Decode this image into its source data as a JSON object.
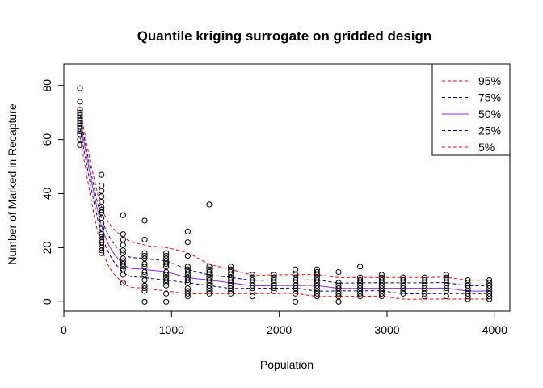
{
  "chart_data": {
    "type": "scatter",
    "title": "Quantile kriging surrogate on gridded design",
    "xlabel": "Population",
    "ylabel": "Number of Marked in Recapture",
    "xlim": [
      0,
      4140
    ],
    "ylim": [
      -3.5,
      88
    ],
    "xticks": [
      0,
      1000,
      2000,
      3000,
      4000
    ],
    "yticks": [
      0,
      20,
      40,
      60,
      80
    ],
    "legend_position": "top-right",
    "points": [
      {
        "x": 150,
        "y": 79
      },
      {
        "x": 150,
        "y": 74
      },
      {
        "x": 150,
        "y": 71
      },
      {
        "x": 150,
        "y": 70
      },
      {
        "x": 150,
        "y": 69
      },
      {
        "x": 150,
        "y": 68
      },
      {
        "x": 150,
        "y": 67
      },
      {
        "x": 150,
        "y": 66
      },
      {
        "x": 150,
        "y": 65
      },
      {
        "x": 150,
        "y": 64
      },
      {
        "x": 150,
        "y": 63
      },
      {
        "x": 150,
        "y": 62
      },
      {
        "x": 150,
        "y": 60
      },
      {
        "x": 150,
        "y": 58
      },
      {
        "x": 350,
        "y": 47
      },
      {
        "x": 350,
        "y": 43
      },
      {
        "x": 350,
        "y": 41
      },
      {
        "x": 350,
        "y": 39
      },
      {
        "x": 350,
        "y": 37
      },
      {
        "x": 350,
        "y": 35
      },
      {
        "x": 350,
        "y": 34
      },
      {
        "x": 350,
        "y": 33
      },
      {
        "x": 350,
        "y": 31
      },
      {
        "x": 350,
        "y": 29
      },
      {
        "x": 350,
        "y": 27
      },
      {
        "x": 350,
        "y": 25
      },
      {
        "x": 350,
        "y": 24
      },
      {
        "x": 350,
        "y": 23
      },
      {
        "x": 350,
        "y": 22
      },
      {
        "x": 350,
        "y": 21
      },
      {
        "x": 350,
        "y": 20
      },
      {
        "x": 350,
        "y": 19
      },
      {
        "x": 350,
        "y": 18
      },
      {
        "x": 550,
        "y": 32
      },
      {
        "x": 550,
        "y": 25
      },
      {
        "x": 550,
        "y": 23
      },
      {
        "x": 550,
        "y": 21
      },
      {
        "x": 550,
        "y": 19
      },
      {
        "x": 550,
        "y": 18
      },
      {
        "x": 550,
        "y": 16
      },
      {
        "x": 550,
        "y": 15
      },
      {
        "x": 550,
        "y": 14
      },
      {
        "x": 550,
        "y": 13
      },
      {
        "x": 550,
        "y": 12
      },
      {
        "x": 550,
        "y": 10
      },
      {
        "x": 550,
        "y": 7
      },
      {
        "x": 750,
        "y": 30
      },
      {
        "x": 750,
        "y": 23
      },
      {
        "x": 750,
        "y": 18
      },
      {
        "x": 750,
        "y": 17
      },
      {
        "x": 750,
        "y": 16
      },
      {
        "x": 750,
        "y": 14
      },
      {
        "x": 750,
        "y": 13
      },
      {
        "x": 750,
        "y": 11
      },
      {
        "x": 750,
        "y": 10
      },
      {
        "x": 750,
        "y": 8
      },
      {
        "x": 750,
        "y": 6
      },
      {
        "x": 750,
        "y": 5
      },
      {
        "x": 750,
        "y": 4
      },
      {
        "x": 750,
        "y": 0
      },
      {
        "x": 950,
        "y": 18
      },
      {
        "x": 950,
        "y": 17
      },
      {
        "x": 950,
        "y": 16
      },
      {
        "x": 950,
        "y": 15
      },
      {
        "x": 950,
        "y": 14
      },
      {
        "x": 950,
        "y": 13
      },
      {
        "x": 950,
        "y": 11
      },
      {
        "x": 950,
        "y": 10
      },
      {
        "x": 950,
        "y": 9
      },
      {
        "x": 950,
        "y": 8
      },
      {
        "x": 950,
        "y": 7
      },
      {
        "x": 950,
        "y": 6
      },
      {
        "x": 950,
        "y": 3
      },
      {
        "x": 950,
        "y": 0
      },
      {
        "x": 1150,
        "y": 26
      },
      {
        "x": 1150,
        "y": 22
      },
      {
        "x": 1150,
        "y": 17
      },
      {
        "x": 1150,
        "y": 13
      },
      {
        "x": 1150,
        "y": 12
      },
      {
        "x": 1150,
        "y": 11
      },
      {
        "x": 1150,
        "y": 10
      },
      {
        "x": 1150,
        "y": 9
      },
      {
        "x": 1150,
        "y": 8
      },
      {
        "x": 1150,
        "y": 7
      },
      {
        "x": 1150,
        "y": 5
      },
      {
        "x": 1150,
        "y": 4
      },
      {
        "x": 1150,
        "y": 3
      },
      {
        "x": 1150,
        "y": 2
      },
      {
        "x": 1350,
        "y": 36
      },
      {
        "x": 1350,
        "y": 13
      },
      {
        "x": 1350,
        "y": 12
      },
      {
        "x": 1350,
        "y": 11
      },
      {
        "x": 1350,
        "y": 10
      },
      {
        "x": 1350,
        "y": 9
      },
      {
        "x": 1350,
        "y": 8
      },
      {
        "x": 1350,
        "y": 7
      },
      {
        "x": 1350,
        "y": 6
      },
      {
        "x": 1350,
        "y": 5
      },
      {
        "x": 1350,
        "y": 4
      },
      {
        "x": 1350,
        "y": 3
      },
      {
        "x": 1550,
        "y": 13
      },
      {
        "x": 1550,
        "y": 12
      },
      {
        "x": 1550,
        "y": 11
      },
      {
        "x": 1550,
        "y": 10
      },
      {
        "x": 1550,
        "y": 9
      },
      {
        "x": 1550,
        "y": 8
      },
      {
        "x": 1550,
        "y": 7
      },
      {
        "x": 1550,
        "y": 6
      },
      {
        "x": 1550,
        "y": 5
      },
      {
        "x": 1550,
        "y": 4
      },
      {
        "x": 1550,
        "y": 3
      },
      {
        "x": 1750,
        "y": 10
      },
      {
        "x": 1750,
        "y": 9
      },
      {
        "x": 1750,
        "y": 8
      },
      {
        "x": 1750,
        "y": 7
      },
      {
        "x": 1750,
        "y": 6
      },
      {
        "x": 1750,
        "y": 5
      },
      {
        "x": 1750,
        "y": 4
      },
      {
        "x": 1750,
        "y": 2
      },
      {
        "x": 1950,
        "y": 10
      },
      {
        "x": 1950,
        "y": 9
      },
      {
        "x": 1950,
        "y": 8
      },
      {
        "x": 1950,
        "y": 7
      },
      {
        "x": 1950,
        "y": 6
      },
      {
        "x": 1950,
        "y": 5
      },
      {
        "x": 1950,
        "y": 4
      },
      {
        "x": 2150,
        "y": 12
      },
      {
        "x": 2150,
        "y": 10
      },
      {
        "x": 2150,
        "y": 9
      },
      {
        "x": 2150,
        "y": 8
      },
      {
        "x": 2150,
        "y": 7
      },
      {
        "x": 2150,
        "y": 6
      },
      {
        "x": 2150,
        "y": 5
      },
      {
        "x": 2150,
        "y": 4
      },
      {
        "x": 2150,
        "y": 3
      },
      {
        "x": 2150,
        "y": 0
      },
      {
        "x": 2350,
        "y": 12
      },
      {
        "x": 2350,
        "y": 11
      },
      {
        "x": 2350,
        "y": 10
      },
      {
        "x": 2350,
        "y": 9
      },
      {
        "x": 2350,
        "y": 8
      },
      {
        "x": 2350,
        "y": 7
      },
      {
        "x": 2350,
        "y": 6
      },
      {
        "x": 2350,
        "y": 5
      },
      {
        "x": 2350,
        "y": 4
      },
      {
        "x": 2350,
        "y": 3
      },
      {
        "x": 2350,
        "y": 2
      },
      {
        "x": 2550,
        "y": 11
      },
      {
        "x": 2550,
        "y": 7
      },
      {
        "x": 2550,
        "y": 6
      },
      {
        "x": 2550,
        "y": 5
      },
      {
        "x": 2550,
        "y": 4
      },
      {
        "x": 2550,
        "y": 3
      },
      {
        "x": 2550,
        "y": 2
      },
      {
        "x": 2550,
        "y": 0
      },
      {
        "x": 2750,
        "y": 13
      },
      {
        "x": 2750,
        "y": 9
      },
      {
        "x": 2750,
        "y": 8
      },
      {
        "x": 2750,
        "y": 7
      },
      {
        "x": 2750,
        "y": 6
      },
      {
        "x": 2750,
        "y": 5
      },
      {
        "x": 2750,
        "y": 4
      },
      {
        "x": 2750,
        "y": 3
      },
      {
        "x": 2750,
        "y": 2
      },
      {
        "x": 2950,
        "y": 10
      },
      {
        "x": 2950,
        "y": 9
      },
      {
        "x": 2950,
        "y": 8
      },
      {
        "x": 2950,
        "y": 7
      },
      {
        "x": 2950,
        "y": 6
      },
      {
        "x": 2950,
        "y": 5
      },
      {
        "x": 2950,
        "y": 4
      },
      {
        "x": 2950,
        "y": 3
      },
      {
        "x": 2950,
        "y": 2
      },
      {
        "x": 3150,
        "y": 9
      },
      {
        "x": 3150,
        "y": 8
      },
      {
        "x": 3150,
        "y": 7
      },
      {
        "x": 3150,
        "y": 6
      },
      {
        "x": 3150,
        "y": 5
      },
      {
        "x": 3150,
        "y": 4
      },
      {
        "x": 3150,
        "y": 3
      },
      {
        "x": 3350,
        "y": 9
      },
      {
        "x": 3350,
        "y": 8
      },
      {
        "x": 3350,
        "y": 7
      },
      {
        "x": 3350,
        "y": 6
      },
      {
        "x": 3350,
        "y": 5
      },
      {
        "x": 3350,
        "y": 4
      },
      {
        "x": 3350,
        "y": 3
      },
      {
        "x": 3350,
        "y": 2
      },
      {
        "x": 3550,
        "y": 10
      },
      {
        "x": 3550,
        "y": 9
      },
      {
        "x": 3550,
        "y": 8
      },
      {
        "x": 3550,
        "y": 7
      },
      {
        "x": 3550,
        "y": 6
      },
      {
        "x": 3550,
        "y": 5
      },
      {
        "x": 3550,
        "y": 4
      },
      {
        "x": 3550,
        "y": 2
      },
      {
        "x": 3750,
        "y": 8
      },
      {
        "x": 3750,
        "y": 7
      },
      {
        "x": 3750,
        "y": 6
      },
      {
        "x": 3750,
        "y": 5
      },
      {
        "x": 3750,
        "y": 4
      },
      {
        "x": 3750,
        "y": 3
      },
      {
        "x": 3750,
        "y": 2
      },
      {
        "x": 3750,
        "y": 1
      },
      {
        "x": 3950,
        "y": 8
      },
      {
        "x": 3950,
        "y": 7
      },
      {
        "x": 3950,
        "y": 6
      },
      {
        "x": 3950,
        "y": 5
      },
      {
        "x": 3950,
        "y": 4
      },
      {
        "x": 3950,
        "y": 3
      },
      {
        "x": 3950,
        "y": 2
      },
      {
        "x": 3950,
        "y": 1
      }
    ],
    "series": [
      {
        "name": "95%",
        "color": "#ff0000",
        "dash": "dashed",
        "x": [
          150,
          350,
          550,
          750,
          950,
          1150,
          1350,
          1550,
          1750,
          1950,
          2150,
          2350,
          2550,
          2750,
          2950,
          3150,
          3350,
          3550,
          3750,
          3950
        ],
        "y": [
          71,
          35,
          24,
          21,
          20,
          18,
          14,
          12,
          10,
          10,
          10,
          10,
          9,
          9,
          9,
          9,
          9,
          9,
          8,
          8
        ]
      },
      {
        "name": "75%",
        "color": "#00008b",
        "dash": "dashed",
        "x": [
          150,
          350,
          550,
          750,
          950,
          1150,
          1350,
          1550,
          1750,
          1950,
          2150,
          2350,
          2550,
          2750,
          2950,
          3150,
          3350,
          3550,
          3750,
          3950
        ],
        "y": [
          69,
          31,
          18,
          16,
          15,
          12,
          10,
          9,
          8,
          8,
          8,
          8,
          7,
          7,
          7,
          7,
          7,
          7,
          6,
          6
        ]
      },
      {
        "name": "50%",
        "color": "#8a2be2",
        "dash": "solid",
        "x": [
          150,
          350,
          550,
          750,
          950,
          1150,
          1350,
          1550,
          1750,
          1950,
          2150,
          2350,
          2550,
          2750,
          2950,
          3150,
          3350,
          3550,
          3750,
          3950
        ],
        "y": [
          67,
          28,
          14,
          12,
          11,
          9,
          8,
          7,
          6,
          6,
          6,
          6,
          5,
          5,
          5,
          5,
          5,
          5,
          4,
          4
        ]
      },
      {
        "name": "25%",
        "color": "#00008b",
        "dash": "dashed",
        "x": [
          150,
          350,
          550,
          750,
          950,
          1150,
          1350,
          1550,
          1750,
          1950,
          2150,
          2350,
          2550,
          2750,
          2950,
          3150,
          3350,
          3550,
          3750,
          3950
        ],
        "y": [
          64,
          25,
          11,
          9,
          8,
          7,
          6,
          5,
          5,
          5,
          5,
          4,
          4,
          4,
          4,
          3,
          3,
          3,
          3,
          3
        ]
      },
      {
        "name": "5%",
        "color": "#ff0000",
        "dash": "dashed",
        "x": [
          150,
          350,
          550,
          750,
          950,
          1150,
          1350,
          1550,
          1750,
          1950,
          2150,
          2350,
          2550,
          2750,
          2950,
          3150,
          3350,
          3550,
          3750,
          3950
        ],
        "y": [
          61,
          20,
          7,
          5,
          4,
          3,
          3,
          3,
          3,
          3,
          3,
          2,
          2,
          2,
          2,
          1,
          1,
          1,
          1,
          1
        ]
      }
    ]
  }
}
